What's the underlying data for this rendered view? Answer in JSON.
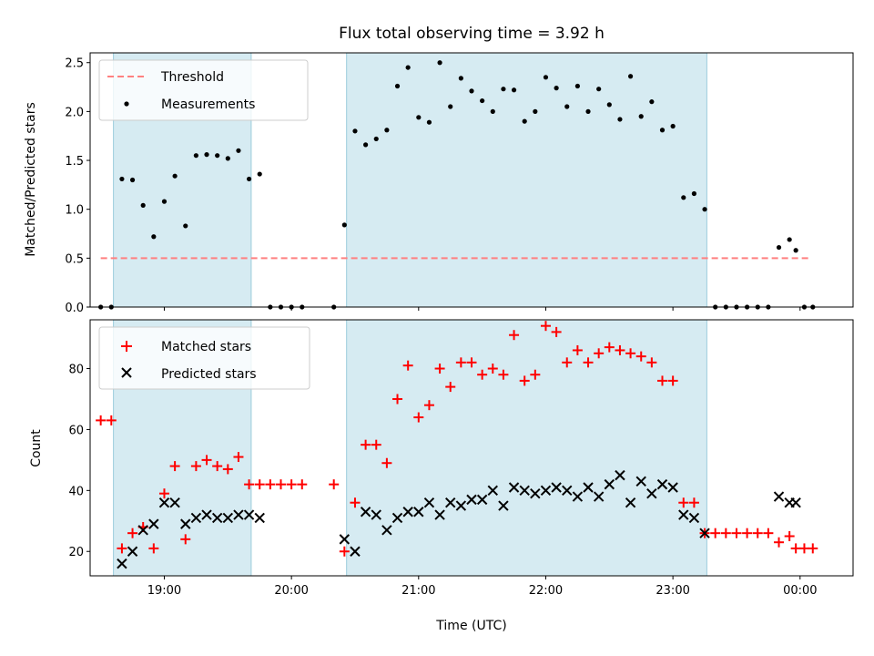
{
  "chart_data": [
    {
      "type": "scatter",
      "title": "Flux total observing time = 3.92 h",
      "xlabel": "",
      "ylabel": "Matched/Predicted stars",
      "ylim": [
        0,
        2.6
      ],
      "yticks": [
        "0.0",
        "0.5",
        "1.0",
        "1.5",
        "2.0",
        "2.5"
      ],
      "xlim": [
        "18:25",
        "00:25"
      ],
      "legend_position": "top-left",
      "legend": [
        "Threshold",
        "Measurements"
      ],
      "shaded_intervals": [
        [
          "18:36",
          "19:41"
        ],
        [
          "20:26",
          "23:16"
        ]
      ],
      "threshold": {
        "name": "Threshold",
        "value": 0.5,
        "x_range": [
          "18:30",
          "00:05"
        ],
        "color": "#ff8080"
      },
      "series": [
        {
          "name": "Measurements",
          "color": "#000000",
          "points": [
            [
              "18:30",
              0.0
            ],
            [
              "18:35",
              0.0
            ],
            [
              "18:40",
              1.31
            ],
            [
              "18:45",
              1.3
            ],
            [
              "18:50",
              1.04
            ],
            [
              "18:55",
              0.72
            ],
            [
              "19:00",
              1.08
            ],
            [
              "19:05",
              1.34
            ],
            [
              "19:10",
              0.83
            ],
            [
              "19:15",
              1.55
            ],
            [
              "19:20",
              1.56
            ],
            [
              "19:25",
              1.55
            ],
            [
              "19:30",
              1.52
            ],
            [
              "19:35",
              1.6
            ],
            [
              "19:40",
              1.31
            ],
            [
              "19:45",
              1.36
            ],
            [
              "19:50",
              0.0
            ],
            [
              "19:55",
              0.0
            ],
            [
              "20:00",
              0.0
            ],
            [
              "20:05",
              0.0
            ],
            [
              "20:20",
              0.0
            ],
            [
              "20:25",
              0.84
            ],
            [
              "20:30",
              1.8
            ],
            [
              "20:35",
              1.66
            ],
            [
              "20:40",
              1.72
            ],
            [
              "20:45",
              1.81
            ],
            [
              "20:50",
              2.26
            ],
            [
              "20:55",
              2.45
            ],
            [
              "21:00",
              1.94
            ],
            [
              "21:05",
              1.89
            ],
            [
              "21:10",
              2.5
            ],
            [
              "21:15",
              2.05
            ],
            [
              "21:20",
              2.34
            ],
            [
              "21:25",
              2.21
            ],
            [
              "21:30",
              2.11
            ],
            [
              "21:35",
              2.0
            ],
            [
              "21:40",
              2.23
            ],
            [
              "21:45",
              2.22
            ],
            [
              "21:50",
              1.9
            ],
            [
              "21:55",
              2.0
            ],
            [
              "22:00",
              2.35
            ],
            [
              "22:05",
              2.24
            ],
            [
              "22:10",
              2.05
            ],
            [
              "22:15",
              2.26
            ],
            [
              "22:20",
              2.0
            ],
            [
              "22:25",
              2.23
            ],
            [
              "22:30",
              2.07
            ],
            [
              "22:35",
              1.92
            ],
            [
              "22:40",
              2.36
            ],
            [
              "22:45",
              1.95
            ],
            [
              "22:50",
              2.1
            ],
            [
              "22:55",
              1.81
            ],
            [
              "23:00",
              1.85
            ],
            [
              "23:05",
              1.12
            ],
            [
              "23:10",
              1.16
            ],
            [
              "23:15",
              1.0
            ],
            [
              "23:20",
              0.0
            ],
            [
              "23:25",
              0.0
            ],
            [
              "23:30",
              0.0
            ],
            [
              "23:35",
              0.0
            ],
            [
              "23:40",
              0.0
            ],
            [
              "23:45",
              0.0
            ],
            [
              "23:50",
              0.61
            ],
            [
              "23:55",
              0.69
            ],
            [
              "23:58",
              0.58
            ],
            [
              "00:02",
              0.0
            ],
            [
              "00:06",
              0.0
            ]
          ]
        }
      ]
    },
    {
      "type": "scatter",
      "title": "",
      "xlabel": "Time (UTC)",
      "ylabel": "Count",
      "ylim": [
        12,
        96
      ],
      "yticks": [
        "20",
        "40",
        "60",
        "80"
      ],
      "xlim": [
        "18:25",
        "00:25"
      ],
      "xticks": [
        "19:00",
        "20:00",
        "21:00",
        "22:00",
        "23:00",
        "00:00"
      ],
      "legend_position": "top-left",
      "legend": [
        "Matched stars",
        "Predicted stars"
      ],
      "shaded_intervals": [
        [
          "18:36",
          "19:41"
        ],
        [
          "20:26",
          "23:16"
        ]
      ],
      "series": [
        {
          "name": "Matched stars",
          "marker": "plus",
          "color": "#ff0000",
          "points": [
            [
              "18:30",
              63
            ],
            [
              "18:35",
              63
            ],
            [
              "18:40",
              21
            ],
            [
              "18:45",
              26
            ],
            [
              "18:50",
              28
            ],
            [
              "18:55",
              21
            ],
            [
              "19:00",
              39
            ],
            [
              "19:05",
              48
            ],
            [
              "19:10",
              24
            ],
            [
              "19:15",
              48
            ],
            [
              "19:20",
              50
            ],
            [
              "19:25",
              48
            ],
            [
              "19:30",
              47
            ],
            [
              "19:35",
              51
            ],
            [
              "19:40",
              42
            ],
            [
              "19:45",
              42
            ],
            [
              "19:50",
              42
            ],
            [
              "19:55",
              42
            ],
            [
              "20:00",
              42
            ],
            [
              "20:05",
              42
            ],
            [
              "20:20",
              42
            ],
            [
              "20:25",
              20
            ],
            [
              "20:30",
              36
            ],
            [
              "20:35",
              55
            ],
            [
              "20:40",
              55
            ],
            [
              "20:45",
              49
            ],
            [
              "20:50",
              70
            ],
            [
              "20:55",
              81
            ],
            [
              "21:00",
              64
            ],
            [
              "21:05",
              68
            ],
            [
              "21:10",
              80
            ],
            [
              "21:15",
              74
            ],
            [
              "21:20",
              82
            ],
            [
              "21:25",
              82
            ],
            [
              "21:30",
              78
            ],
            [
              "21:35",
              80
            ],
            [
              "21:40",
              78
            ],
            [
              "21:45",
              91
            ],
            [
              "21:50",
              76
            ],
            [
              "21:55",
              78
            ],
            [
              "22:00",
              94
            ],
            [
              "22:05",
              92
            ],
            [
              "22:10",
              82
            ],
            [
              "22:15",
              86
            ],
            [
              "22:20",
              82
            ],
            [
              "22:25",
              85
            ],
            [
              "22:30",
              87
            ],
            [
              "22:35",
              86
            ],
            [
              "22:40",
              85
            ],
            [
              "22:45",
              84
            ],
            [
              "22:50",
              82
            ],
            [
              "22:55",
              76
            ],
            [
              "23:00",
              76
            ],
            [
              "23:05",
              36
            ],
            [
              "23:10",
              36
            ],
            [
              "23:15",
              26
            ],
            [
              "23:20",
              26
            ],
            [
              "23:25",
              26
            ],
            [
              "23:30",
              26
            ],
            [
              "23:35",
              26
            ],
            [
              "23:40",
              26
            ],
            [
              "23:45",
              26
            ],
            [
              "23:50",
              23
            ],
            [
              "23:55",
              25
            ],
            [
              "23:58",
              21
            ],
            [
              "00:02",
              21
            ],
            [
              "00:06",
              21
            ]
          ]
        },
        {
          "name": "Predicted stars",
          "marker": "x",
          "color": "#000000",
          "points": [
            [
              "18:40",
              16
            ],
            [
              "18:45",
              20
            ],
            [
              "18:50",
              27
            ],
            [
              "18:55",
              29
            ],
            [
              "19:00",
              36
            ],
            [
              "19:05",
              36
            ],
            [
              "19:10",
              29
            ],
            [
              "19:15",
              31
            ],
            [
              "19:20",
              32
            ],
            [
              "19:25",
              31
            ],
            [
              "19:30",
              31
            ],
            [
              "19:35",
              32
            ],
            [
              "19:40",
              32
            ],
            [
              "19:45",
              31
            ],
            [
              "20:25",
              24
            ],
            [
              "20:30",
              20
            ],
            [
              "20:35",
              33
            ],
            [
              "20:40",
              32
            ],
            [
              "20:45",
              27
            ],
            [
              "20:50",
              31
            ],
            [
              "20:55",
              33
            ],
            [
              "21:00",
              33
            ],
            [
              "21:05",
              36
            ],
            [
              "21:10",
              32
            ],
            [
              "21:15",
              36
            ],
            [
              "21:20",
              35
            ],
            [
              "21:25",
              37
            ],
            [
              "21:30",
              37
            ],
            [
              "21:35",
              40
            ],
            [
              "21:40",
              35
            ],
            [
              "21:45",
              41
            ],
            [
              "21:50",
              40
            ],
            [
              "21:55",
              39
            ],
            [
              "22:00",
              40
            ],
            [
              "22:05",
              41
            ],
            [
              "22:10",
              40
            ],
            [
              "22:15",
              38
            ],
            [
              "22:20",
              41
            ],
            [
              "22:25",
              38
            ],
            [
              "22:30",
              42
            ],
            [
              "22:35",
              45
            ],
            [
              "22:40",
              36
            ],
            [
              "22:45",
              43
            ],
            [
              "22:50",
              39
            ],
            [
              "22:55",
              42
            ],
            [
              "23:00",
              41
            ],
            [
              "23:05",
              32
            ],
            [
              "23:10",
              31
            ],
            [
              "23:15",
              26
            ],
            [
              "23:50",
              38
            ],
            [
              "23:55",
              36
            ],
            [
              "23:58",
              36
            ]
          ]
        }
      ]
    }
  ]
}
